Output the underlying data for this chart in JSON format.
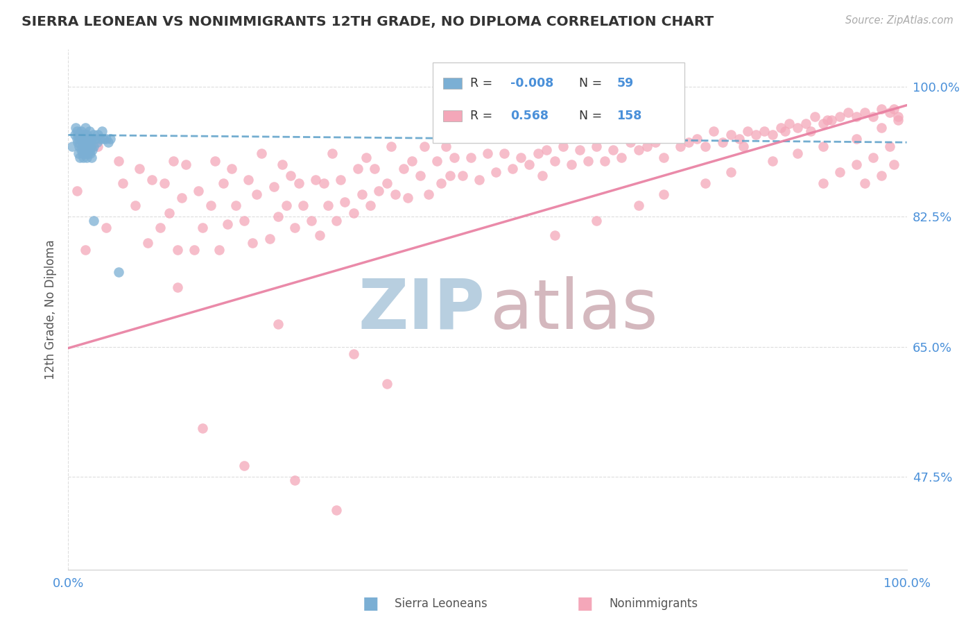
{
  "title": "SIERRA LEONEAN VS NONIMMIGRANTS 12TH GRADE, NO DIPLOMA CORRELATION CHART",
  "source": "Source: ZipAtlas.com",
  "ylabel": "12th Grade, No Diploma",
  "blue_color": "#7bafd4",
  "pink_color": "#f4a7b9",
  "blue_line_color": "#5b9fc8",
  "pink_line_color": "#e87da0",
  "title_color": "#333333",
  "source_color": "#aaaaaa",
  "axis_label_color": "#4a90d9",
  "grid_color": "#dddddd",
  "watermark_zip_color": "#b8cfe0",
  "watermark_atlas_color": "#d4b8be",
  "xlim": [
    0.0,
    1.0
  ],
  "ylim": [
    0.35,
    1.05
  ],
  "right_yticks": [
    1.0,
    0.825,
    0.65,
    0.475
  ],
  "right_yticklabels": [
    "100.0%",
    "82.5%",
    "65.0%",
    "47.5%"
  ],
  "blue_trend_x": [
    0.0,
    1.0
  ],
  "blue_trend_y": [
    0.935,
    0.925
  ],
  "pink_trend_x": [
    0.0,
    1.0
  ],
  "pink_trend_y": [
    0.648,
    0.975
  ],
  "blue_scatter_x": [
    0.005,
    0.008,
    0.009,
    0.01,
    0.01,
    0.011,
    0.012,
    0.012,
    0.013,
    0.013,
    0.014,
    0.014,
    0.015,
    0.015,
    0.015,
    0.016,
    0.016,
    0.017,
    0.017,
    0.018,
    0.018,
    0.018,
    0.019,
    0.019,
    0.02,
    0.02,
    0.02,
    0.02,
    0.021,
    0.021,
    0.022,
    0.022,
    0.022,
    0.023,
    0.023,
    0.024,
    0.024,
    0.025,
    0.025,
    0.025,
    0.026,
    0.026,
    0.027,
    0.028,
    0.028,
    0.029,
    0.03,
    0.03,
    0.032,
    0.034,
    0.035,
    0.038,
    0.04,
    0.042,
    0.045,
    0.048,
    0.05,
    0.03,
    0.06
  ],
  "blue_scatter_y": [
    0.92,
    0.935,
    0.945,
    0.93,
    0.94,
    0.925,
    0.91,
    0.935,
    0.92,
    0.93,
    0.905,
    0.935,
    0.915,
    0.93,
    0.94,
    0.92,
    0.93,
    0.91,
    0.925,
    0.905,
    0.92,
    0.935,
    0.91,
    0.93,
    0.915,
    0.925,
    0.935,
    0.945,
    0.91,
    0.93,
    0.905,
    0.92,
    0.935,
    0.915,
    0.925,
    0.91,
    0.93,
    0.915,
    0.925,
    0.94,
    0.91,
    0.93,
    0.92,
    0.905,
    0.93,
    0.915,
    0.92,
    0.935,
    0.93,
    0.925,
    0.935,
    0.93,
    0.94,
    0.93,
    0.93,
    0.925,
    0.93,
    0.82,
    0.75
  ],
  "pink_scatter_x": [
    0.01,
    0.02,
    0.035,
    0.045,
    0.06,
    0.065,
    0.08,
    0.085,
    0.095,
    0.1,
    0.11,
    0.115,
    0.12,
    0.125,
    0.13,
    0.135,
    0.14,
    0.15,
    0.155,
    0.16,
    0.17,
    0.175,
    0.18,
    0.185,
    0.19,
    0.195,
    0.2,
    0.21,
    0.215,
    0.22,
    0.225,
    0.23,
    0.24,
    0.245,
    0.25,
    0.255,
    0.26,
    0.265,
    0.27,
    0.275,
    0.28,
    0.29,
    0.295,
    0.3,
    0.305,
    0.31,
    0.315,
    0.32,
    0.325,
    0.33,
    0.34,
    0.345,
    0.35,
    0.355,
    0.36,
    0.365,
    0.37,
    0.38,
    0.385,
    0.39,
    0.4,
    0.405,
    0.41,
    0.42,
    0.425,
    0.43,
    0.44,
    0.445,
    0.45,
    0.455,
    0.46,
    0.47,
    0.48,
    0.49,
    0.5,
    0.51,
    0.52,
    0.53,
    0.54,
    0.55,
    0.56,
    0.565,
    0.57,
    0.58,
    0.59,
    0.6,
    0.61,
    0.62,
    0.63,
    0.64,
    0.65,
    0.66,
    0.67,
    0.68,
    0.69,
    0.7,
    0.71,
    0.72,
    0.73,
    0.74,
    0.75,
    0.76,
    0.77,
    0.78,
    0.79,
    0.8,
    0.805,
    0.81,
    0.82,
    0.83,
    0.84,
    0.85,
    0.855,
    0.86,
    0.87,
    0.88,
    0.885,
    0.89,
    0.9,
    0.905,
    0.91,
    0.92,
    0.93,
    0.94,
    0.95,
    0.96,
    0.97,
    0.98,
    0.985,
    0.99,
    0.13,
    0.25,
    0.34,
    0.38,
    0.16,
    0.21,
    0.27,
    0.32,
    0.58,
    0.63,
    0.68,
    0.71,
    0.76,
    0.79,
    0.84,
    0.87,
    0.9,
    0.94,
    0.97,
    0.99,
    0.9,
    0.92,
    0.94,
    0.96,
    0.98,
    0.95,
    0.97,
    0.985
  ],
  "pink_scatter_y": [
    0.86,
    0.78,
    0.92,
    0.81,
    0.9,
    0.87,
    0.84,
    0.89,
    0.79,
    0.875,
    0.81,
    0.87,
    0.83,
    0.9,
    0.78,
    0.85,
    0.895,
    0.78,
    0.86,
    0.81,
    0.84,
    0.9,
    0.78,
    0.87,
    0.815,
    0.89,
    0.84,
    0.82,
    0.875,
    0.79,
    0.855,
    0.91,
    0.795,
    0.865,
    0.825,
    0.895,
    0.84,
    0.88,
    0.81,
    0.87,
    0.84,
    0.82,
    0.875,
    0.8,
    0.87,
    0.84,
    0.91,
    0.82,
    0.875,
    0.845,
    0.83,
    0.89,
    0.855,
    0.905,
    0.84,
    0.89,
    0.86,
    0.87,
    0.92,
    0.855,
    0.89,
    0.85,
    0.9,
    0.88,
    0.92,
    0.855,
    0.9,
    0.87,
    0.92,
    0.88,
    0.905,
    0.88,
    0.905,
    0.875,
    0.91,
    0.885,
    0.91,
    0.89,
    0.905,
    0.895,
    0.91,
    0.88,
    0.915,
    0.9,
    0.92,
    0.895,
    0.915,
    0.9,
    0.92,
    0.9,
    0.915,
    0.905,
    0.925,
    0.915,
    0.92,
    0.925,
    0.905,
    0.935,
    0.92,
    0.925,
    0.93,
    0.92,
    0.94,
    0.925,
    0.935,
    0.93,
    0.92,
    0.94,
    0.935,
    0.94,
    0.935,
    0.945,
    0.94,
    0.95,
    0.945,
    0.95,
    0.94,
    0.96,
    0.95,
    0.955,
    0.955,
    0.96,
    0.965,
    0.96,
    0.965,
    0.96,
    0.97,
    0.965,
    0.97,
    0.96,
    0.73,
    0.68,
    0.64,
    0.6,
    0.54,
    0.49,
    0.47,
    0.43,
    0.8,
    0.82,
    0.84,
    0.855,
    0.87,
    0.885,
    0.9,
    0.91,
    0.92,
    0.93,
    0.945,
    0.955,
    0.87,
    0.885,
    0.895,
    0.905,
    0.92,
    0.87,
    0.88,
    0.895
  ]
}
